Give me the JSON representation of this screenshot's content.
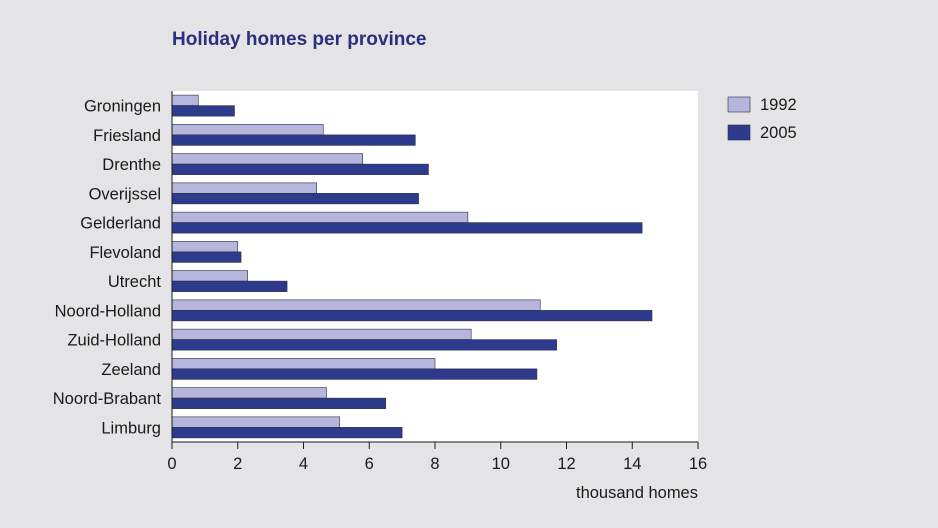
{
  "chart_data": {
    "type": "bar",
    "orientation": "horizontal",
    "title": "Holiday homes per province",
    "xlabel": "thousand homes",
    "ylabel": "",
    "xlim": [
      0,
      16
    ],
    "xticks": [
      "0",
      "2",
      "4",
      "6",
      "8",
      "10",
      "12",
      "14",
      "16"
    ],
    "grid": false,
    "legend_position": "top-right",
    "categories": [
      "Groningen",
      "Friesland",
      "Drenthe",
      "Overijssel",
      "Gelderland",
      "Flevoland",
      "Utrecht",
      "Noord-Holland",
      "Zuid-Holland",
      "Zeeland",
      "Noord-Brabant",
      "Limburg"
    ],
    "series": [
      {
        "name": "1992",
        "color": "#b6b6dc",
        "values": [
          0.8,
          4.6,
          5.8,
          4.4,
          9.0,
          2.0,
          2.3,
          11.2,
          9.1,
          8.0,
          4.7,
          5.1
        ]
      },
      {
        "name": "2005",
        "color": "#2e3b8c",
        "values": [
          1.9,
          7.4,
          7.8,
          7.5,
          14.3,
          2.1,
          3.5,
          14.6,
          11.7,
          11.1,
          6.5,
          7.0
        ]
      }
    ]
  }
}
